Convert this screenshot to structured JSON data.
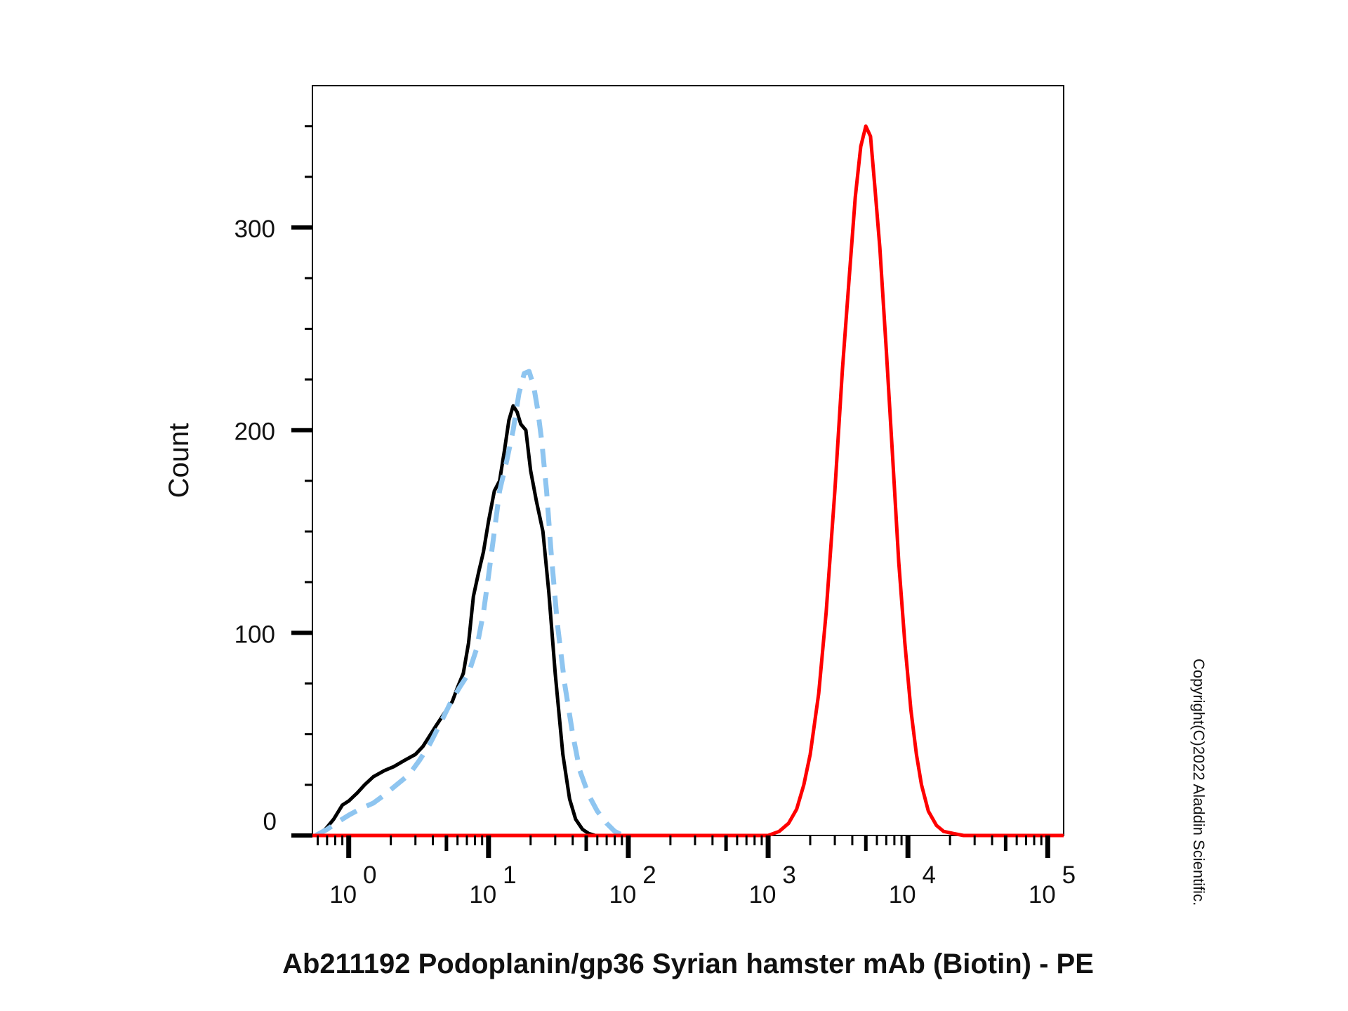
{
  "chart_data": {
    "type": "line",
    "xlabel": "Ab211192 Podoplanin/gp36 Syrian hamster mAb (Biotin) - PE",
    "ylabel": "Count",
    "x_scale": "log",
    "xlim": [
      0.55,
      130000
    ],
    "ylim": [
      0,
      370
    ],
    "x_ticks": [
      {
        "base": "10",
        "exp": "0"
      },
      {
        "base": "10",
        "exp": "1"
      },
      {
        "base": "10",
        "exp": "2"
      },
      {
        "base": "10",
        "exp": "3"
      },
      {
        "base": "10",
        "exp": "4"
      },
      {
        "base": "10",
        "exp": "5"
      }
    ],
    "y_ticks": [
      "0",
      "100",
      "200",
      "300"
    ],
    "grid": false,
    "series": [
      {
        "color": "#000000",
        "style": "solid",
        "x": [
          0.58,
          0.68,
          0.78,
          0.9,
          1.0,
          1.15,
          1.3,
          1.5,
          1.8,
          2.1,
          2.5,
          3.0,
          3.4,
          3.7,
          4.2,
          4.8,
          5.5,
          6.0,
          6.6,
          7.2,
          7.8,
          8.5,
          9.2,
          10.0,
          11.0,
          12.0,
          13.0,
          14.0,
          15.0,
          16.0,
          17.0,
          18.5,
          20.0,
          22.0,
          24.5,
          27.0,
          30.0,
          34.0,
          38.0,
          42.0,
          47.0,
          52.0,
          58.0,
          65.0,
          75.0,
          90.0
        ],
        "y": [
          0,
          3,
          8,
          15,
          17,
          21,
          25,
          29,
          32,
          34,
          37,
          40,
          44,
          48,
          54,
          60,
          66,
          73,
          80,
          95,
          118,
          130,
          140,
          155,
          170,
          175,
          190,
          205,
          212,
          209,
          203,
          200,
          180,
          165,
          150,
          120,
          80,
          40,
          18,
          8,
          3,
          1,
          0,
          0,
          0,
          0
        ]
      },
      {
        "color": "#8ec5f0",
        "style": "dashed",
        "x": [
          0.58,
          0.7,
          0.85,
          1.0,
          1.2,
          1.5,
          1.8,
          2.2,
          2.7,
          3.2,
          3.8,
          4.5,
          5.3,
          6.2,
          7.2,
          8.2,
          9.2,
          10.0,
          11.0,
          12.0,
          13.5,
          15.0,
          16.5,
          18.0,
          19.5,
          21.0,
          22.5,
          24.0,
          26.0,
          28.0,
          31.0,
          35.0,
          40.0,
          45.0,
          52.0,
          60.0,
          70.0,
          80.0,
          92.0,
          105.0
        ],
        "y": [
          0,
          3,
          7,
          10,
          13,
          16,
          20,
          25,
          30,
          37,
          45,
          55,
          65,
          73,
          80,
          92,
          110,
          128,
          150,
          170,
          185,
          200,
          218,
          228,
          229,
          222,
          210,
          195,
          170,
          140,
          105,
          75,
          50,
          32,
          20,
          12,
          6,
          2,
          0,
          0
        ]
      },
      {
        "color": "#ff0000",
        "style": "solid",
        "x": [
          0.55,
          10.0,
          100.0,
          500.0,
          1000.0,
          1200.0,
          1400.0,
          1600.0,
          1800.0,
          2000.0,
          2300.0,
          2600.0,
          3000.0,
          3400.0,
          3800.0,
          4200.0,
          4600.0,
          5000.0,
          5400.0,
          5800.0,
          6300.0,
          7000.0,
          7800.0,
          8600.0,
          9500.0,
          10500.0,
          11500.0,
          12500.0,
          14000.0,
          16000.0,
          18000.0,
          21000.0,
          25000.0,
          40000.0,
          130000.0
        ],
        "y": [
          0,
          0,
          0,
          0,
          0,
          2,
          6,
          13,
          25,
          40,
          70,
          110,
          170,
          230,
          275,
          315,
          340,
          350,
          345,
          320,
          290,
          240,
          185,
          135,
          95,
          62,
          40,
          25,
          12,
          5,
          2,
          1,
          0,
          0,
          0
        ]
      }
    ]
  },
  "copyright": "Copyright(C)2022 Aladdin Scientific."
}
